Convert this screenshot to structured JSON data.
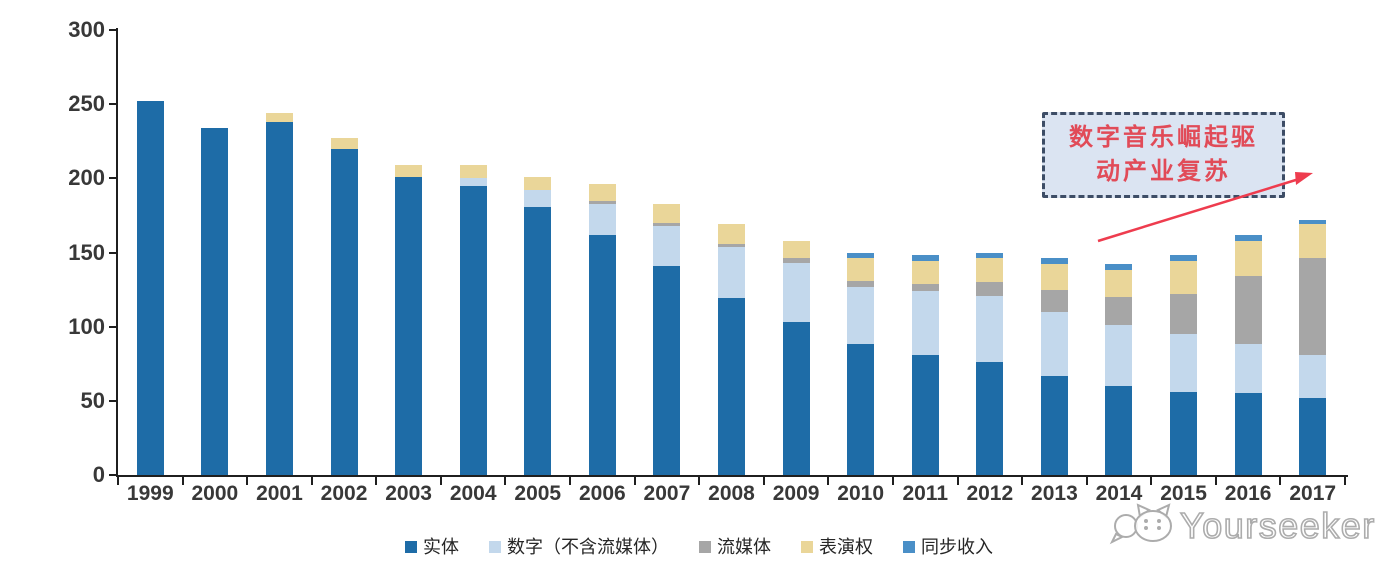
{
  "chart_data": {
    "type": "bar",
    "stacked": true,
    "title": "",
    "xlabel": "",
    "ylabel": "",
    "categories": [
      "1999",
      "2000",
      "2001",
      "2002",
      "2003",
      "2004",
      "2005",
      "2006",
      "2007",
      "2008",
      "2009",
      "2010",
      "2011",
      "2012",
      "2013",
      "2014",
      "2015",
      "2016",
      "2017"
    ],
    "series": [
      {
        "key": "physical",
        "name": "实体",
        "color": "#1e6ca7",
        "values": [
          252,
          234,
          238,
          220,
          201,
          195,
          181,
          162,
          141,
          119,
          103,
          88,
          81,
          76,
          67,
          60,
          56,
          55,
          52
        ]
      },
      {
        "key": "digital-excl-streaming",
        "name": "数字（不含流媒体）",
        "color": "#c3d8ec",
        "values": [
          0,
          0,
          0,
          0,
          0,
          5,
          11,
          21,
          27,
          35,
          40,
          39,
          43,
          45,
          43,
          41,
          39,
          33,
          29
        ]
      },
      {
        "key": "streaming",
        "name": "流媒体",
        "color": "#a6a6a6",
        "values": [
          0,
          0,
          0,
          0,
          0,
          0,
          0,
          2,
          2,
          2,
          3,
          4,
          5,
          9,
          15,
          19,
          27,
          46,
          65
        ]
      },
      {
        "key": "performance-rights",
        "name": "表演权",
        "color": "#ead699",
        "values": [
          0,
          0,
          6,
          7,
          8,
          9,
          9,
          11,
          13,
          13,
          12,
          15,
          15,
          16,
          17,
          18,
          22,
          24,
          23
        ]
      },
      {
        "key": "sync-revenue",
        "name": "同步收入",
        "color": "#4a8fc7",
        "values": [
          0,
          0,
          0,
          0,
          0,
          0,
          0,
          0,
          0,
          0,
          0,
          4,
          4,
          4,
          4,
          4,
          4,
          4,
          3
        ]
      }
    ],
    "ylim": [
      0,
      300
    ],
    "yticks": [
      0,
      50,
      100,
      150,
      200,
      250,
      300
    ],
    "grid": false,
    "legend_position": "bottom"
  },
  "annotation": {
    "line1": "数字音乐崛起驱",
    "line2": "动产业复苏",
    "text_color": "#e14b58",
    "fill_color": "#dbe4f2",
    "border_color": "#3d4d66",
    "arrow_color": "#ee3c4e"
  },
  "watermark": {
    "text": "Yourseeker",
    "color": "#acacac"
  }
}
